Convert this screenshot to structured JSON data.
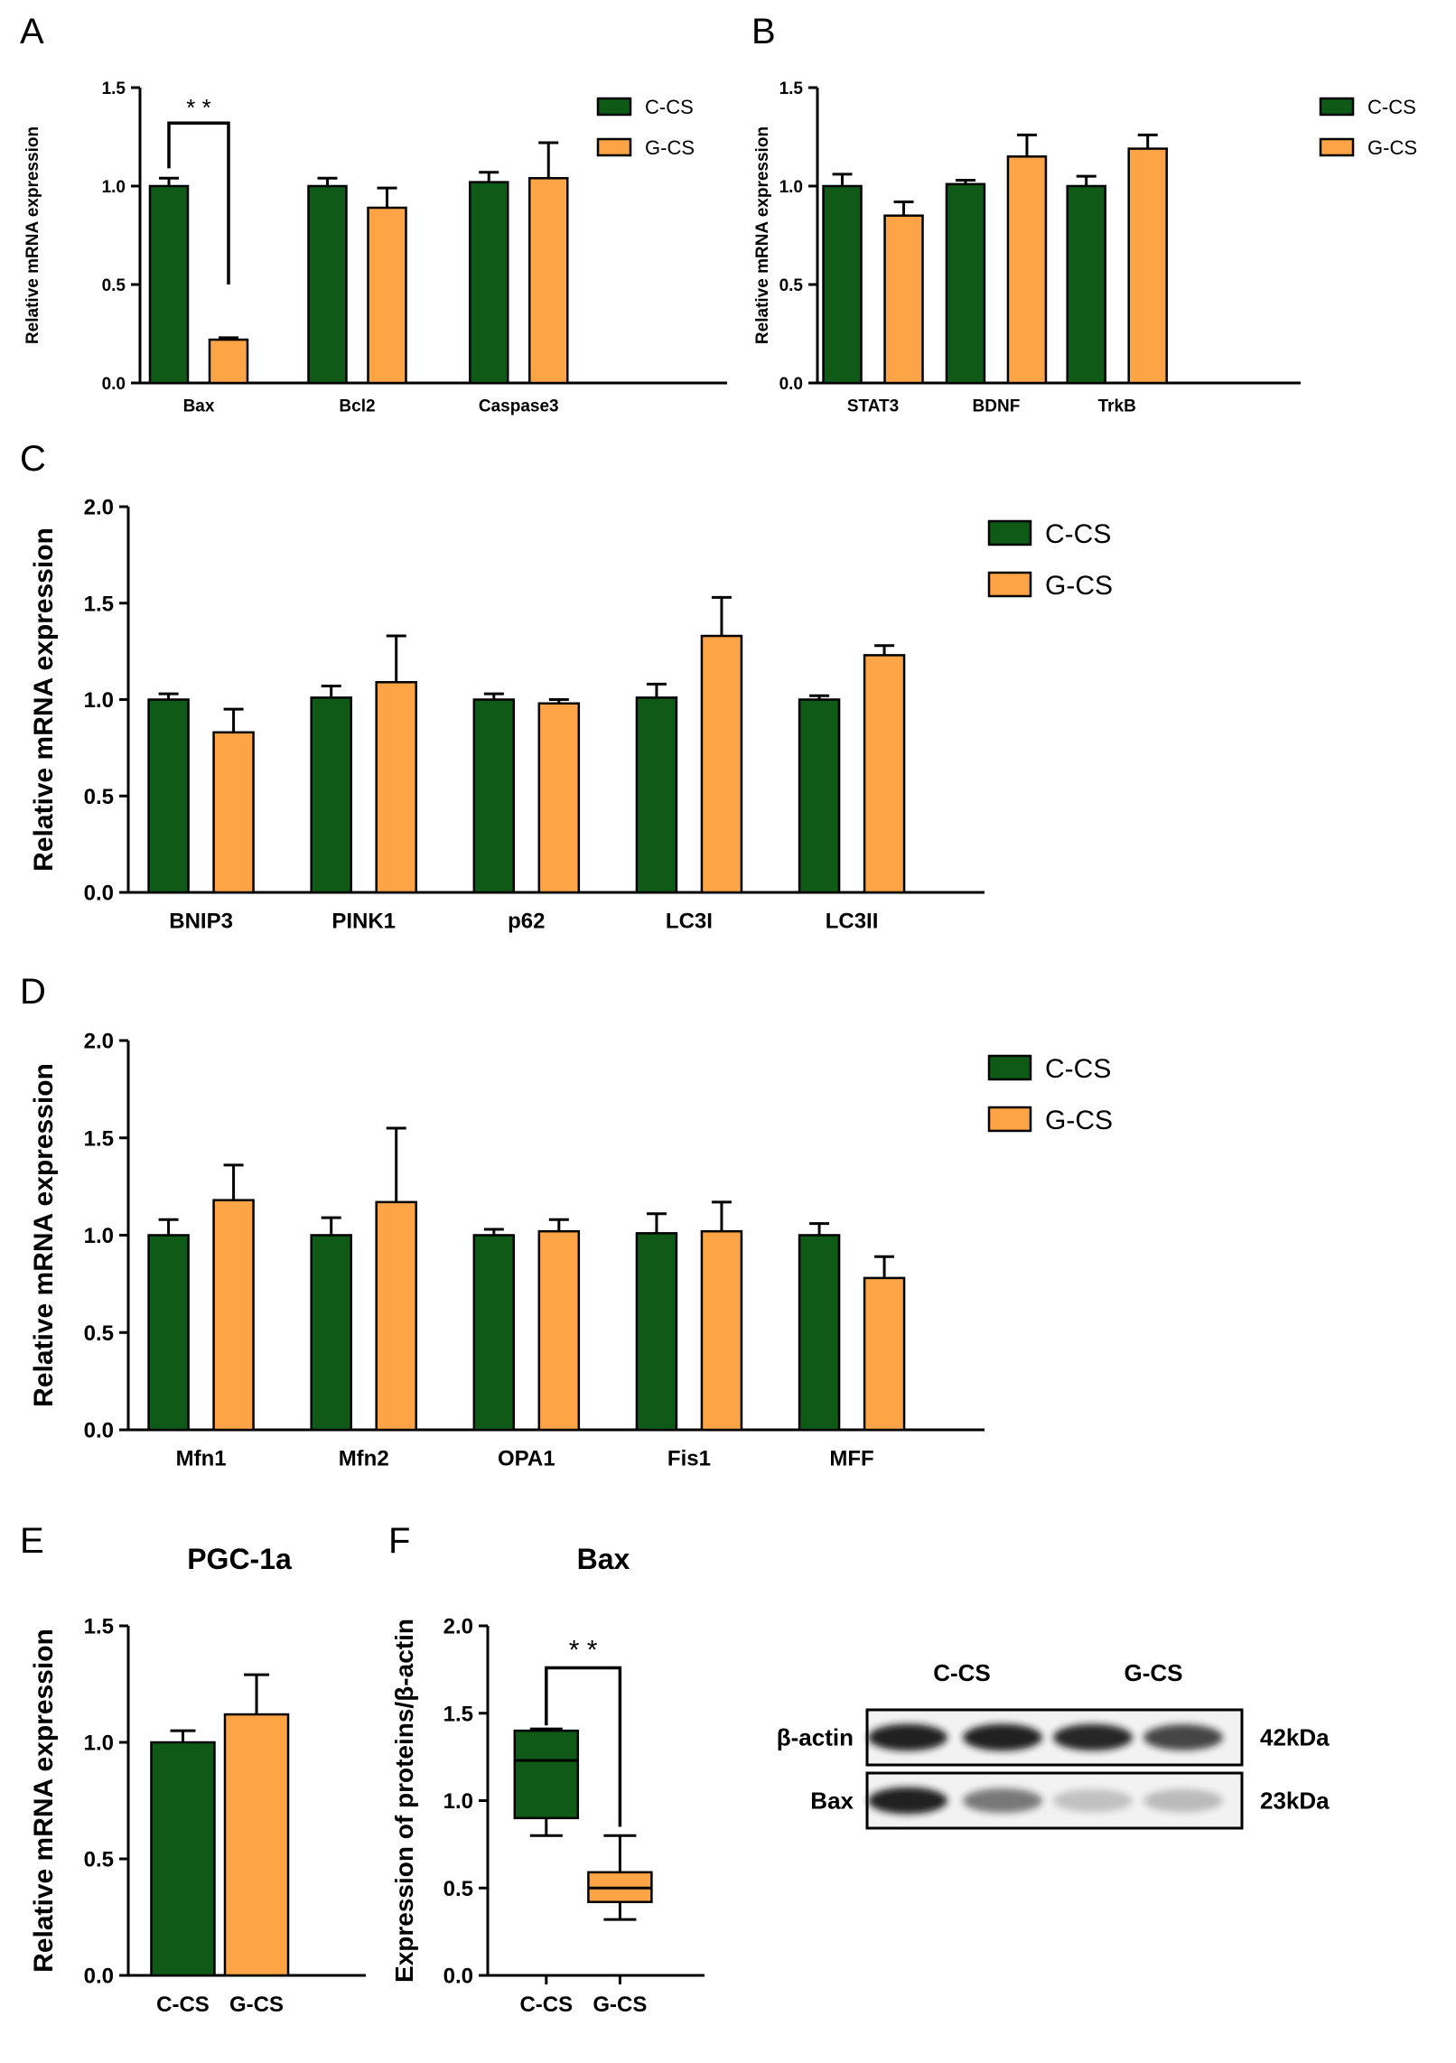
{
  "colors": {
    "c_cs": "#0e5a16",
    "g_cs": "#fca446",
    "axis": "#000000",
    "blot_bg": "#f2f2f2",
    "band": "#141414"
  },
  "chart_data": [
    {
      "panel": "A",
      "type": "bar",
      "title": "",
      "ylabel": "Relative mRNA expression",
      "ylim": [
        0,
        1.5
      ],
      "yticks": [
        "0.0",
        "0.5",
        "1.0",
        "1.5"
      ],
      "categories": [
        "Bax",
        "Bcl2",
        "Caspase3"
      ],
      "series": [
        {
          "name": "C-CS",
          "values": [
            1.0,
            1.0,
            1.02
          ],
          "errors": [
            0.04,
            0.04,
            0.05
          ]
        },
        {
          "name": "G-CS",
          "values": [
            0.22,
            0.89,
            1.04
          ],
          "errors": [
            0.01,
            0.1,
            0.18
          ]
        }
      ],
      "significance": [
        {
          "category": "Bax",
          "label": "* *"
        }
      ],
      "legend_position": "right"
    },
    {
      "panel": "B",
      "type": "bar",
      "title": "",
      "ylabel": "Relative mRNA expression",
      "ylim": [
        0,
        1.5
      ],
      "yticks": [
        "0.0",
        "0.5",
        "1.0",
        "1.5"
      ],
      "categories": [
        "STAT3",
        "BDNF",
        "TrkB"
      ],
      "series": [
        {
          "name": "C-CS",
          "values": [
            1.0,
            1.01,
            1.0
          ],
          "errors": [
            0.06,
            0.02,
            0.05
          ]
        },
        {
          "name": "G-CS",
          "values": [
            0.85,
            1.15,
            1.19
          ],
          "errors": [
            0.07,
            0.11,
            0.07
          ]
        }
      ],
      "legend_position": "right"
    },
    {
      "panel": "C",
      "type": "bar",
      "title": "",
      "ylabel": "Relative mRNA expression",
      "ylim": [
        0,
        2.0
      ],
      "yticks": [
        "0.0",
        "0.5",
        "1.0",
        "1.5",
        "2.0"
      ],
      "categories": [
        "BNIP3",
        "PINK1",
        "p62",
        "LC3I",
        "LC3II"
      ],
      "series": [
        {
          "name": "C-CS",
          "values": [
            1.0,
            1.01,
            1.0,
            1.01,
            1.0
          ],
          "errors": [
            0.03,
            0.06,
            0.03,
            0.07,
            0.02
          ]
        },
        {
          "name": "G-CS",
          "values": [
            0.83,
            1.09,
            0.98,
            1.33,
            1.23
          ],
          "errors": [
            0.12,
            0.24,
            0.02,
            0.2,
            0.05
          ]
        }
      ],
      "legend_position": "right"
    },
    {
      "panel": "D",
      "type": "bar",
      "title": "",
      "ylabel": "Relative mRNA expression",
      "ylim": [
        0,
        2.0
      ],
      "yticks": [
        "0.0",
        "0.5",
        "1.0",
        "1.5",
        "2.0"
      ],
      "categories": [
        "Mfn1",
        "Mfn2",
        "OPA1",
        "Fis1",
        "MFF"
      ],
      "series": [
        {
          "name": "C-CS",
          "values": [
            1.0,
            1.0,
            1.0,
            1.01,
            1.0
          ],
          "errors": [
            0.08,
            0.09,
            0.03,
            0.1,
            0.06
          ]
        },
        {
          "name": "G-CS",
          "values": [
            1.18,
            1.17,
            1.02,
            1.02,
            0.78
          ],
          "errors": [
            0.18,
            0.38,
            0.06,
            0.15,
            0.11
          ]
        }
      ],
      "legend_position": "right"
    },
    {
      "panel": "E",
      "type": "bar",
      "title": "PGC-1a",
      "ylabel": "Relative mRNA expression",
      "ylim": [
        0,
        1.5
      ],
      "yticks": [
        "0.0",
        "0.5",
        "1.0",
        "1.5"
      ],
      "categories": [
        "C-CS",
        "G-CS"
      ],
      "values": [
        1.0,
        1.12
      ],
      "errors": [
        0.05,
        0.17
      ]
    },
    {
      "panel": "F",
      "type": "box",
      "title": "Bax",
      "ylabel": "Expression of proteins/β-actin",
      "ylim": [
        0,
        2.0
      ],
      "yticks": [
        "0.0",
        "0.5",
        "1.0",
        "1.5",
        "2.0"
      ],
      "categories": [
        "C-CS",
        "G-CS"
      ],
      "boxes": [
        {
          "min": 0.8,
          "q1": 0.9,
          "median": 1.23,
          "q3": 1.4,
          "max": 1.41
        },
        {
          "min": 0.32,
          "q1": 0.42,
          "median": 0.5,
          "q3": 0.59,
          "max": 0.8
        }
      ],
      "significance": [
        {
          "label": "* *"
        }
      ]
    }
  ],
  "blot": {
    "group_labels": [
      "C-CS",
      "G-CS"
    ],
    "rows": [
      {
        "protein": "β-actin",
        "size": "42kDa",
        "intensities": [
          0.95,
          0.95,
          0.92,
          0.78
        ]
      },
      {
        "protein": "Bax",
        "size": "23kDa",
        "intensities": [
          0.95,
          0.55,
          0.22,
          0.25
        ]
      }
    ]
  }
}
